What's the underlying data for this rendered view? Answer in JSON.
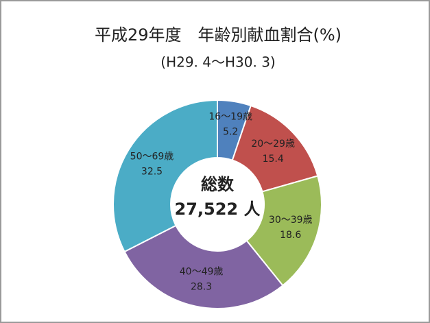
{
  "chart_data": {
    "type": "donut",
    "title": "平成29年度　年齢別献血割合(%)",
    "subtitle": "(H29. 4～H30. 3)",
    "center_label": [
      "総数",
      "27,522 人"
    ],
    "categories": [
      "16～19歳",
      "20～29歳",
      "30～39歳",
      "40～49歳",
      "50～69歳"
    ],
    "values": [
      5.2,
      15.4,
      18.6,
      28.3,
      32.5
    ],
    "colors": [
      "#4f81bd",
      "#c0504d",
      "#9bbb59",
      "#8064a2",
      "#4bacc6"
    ]
  }
}
